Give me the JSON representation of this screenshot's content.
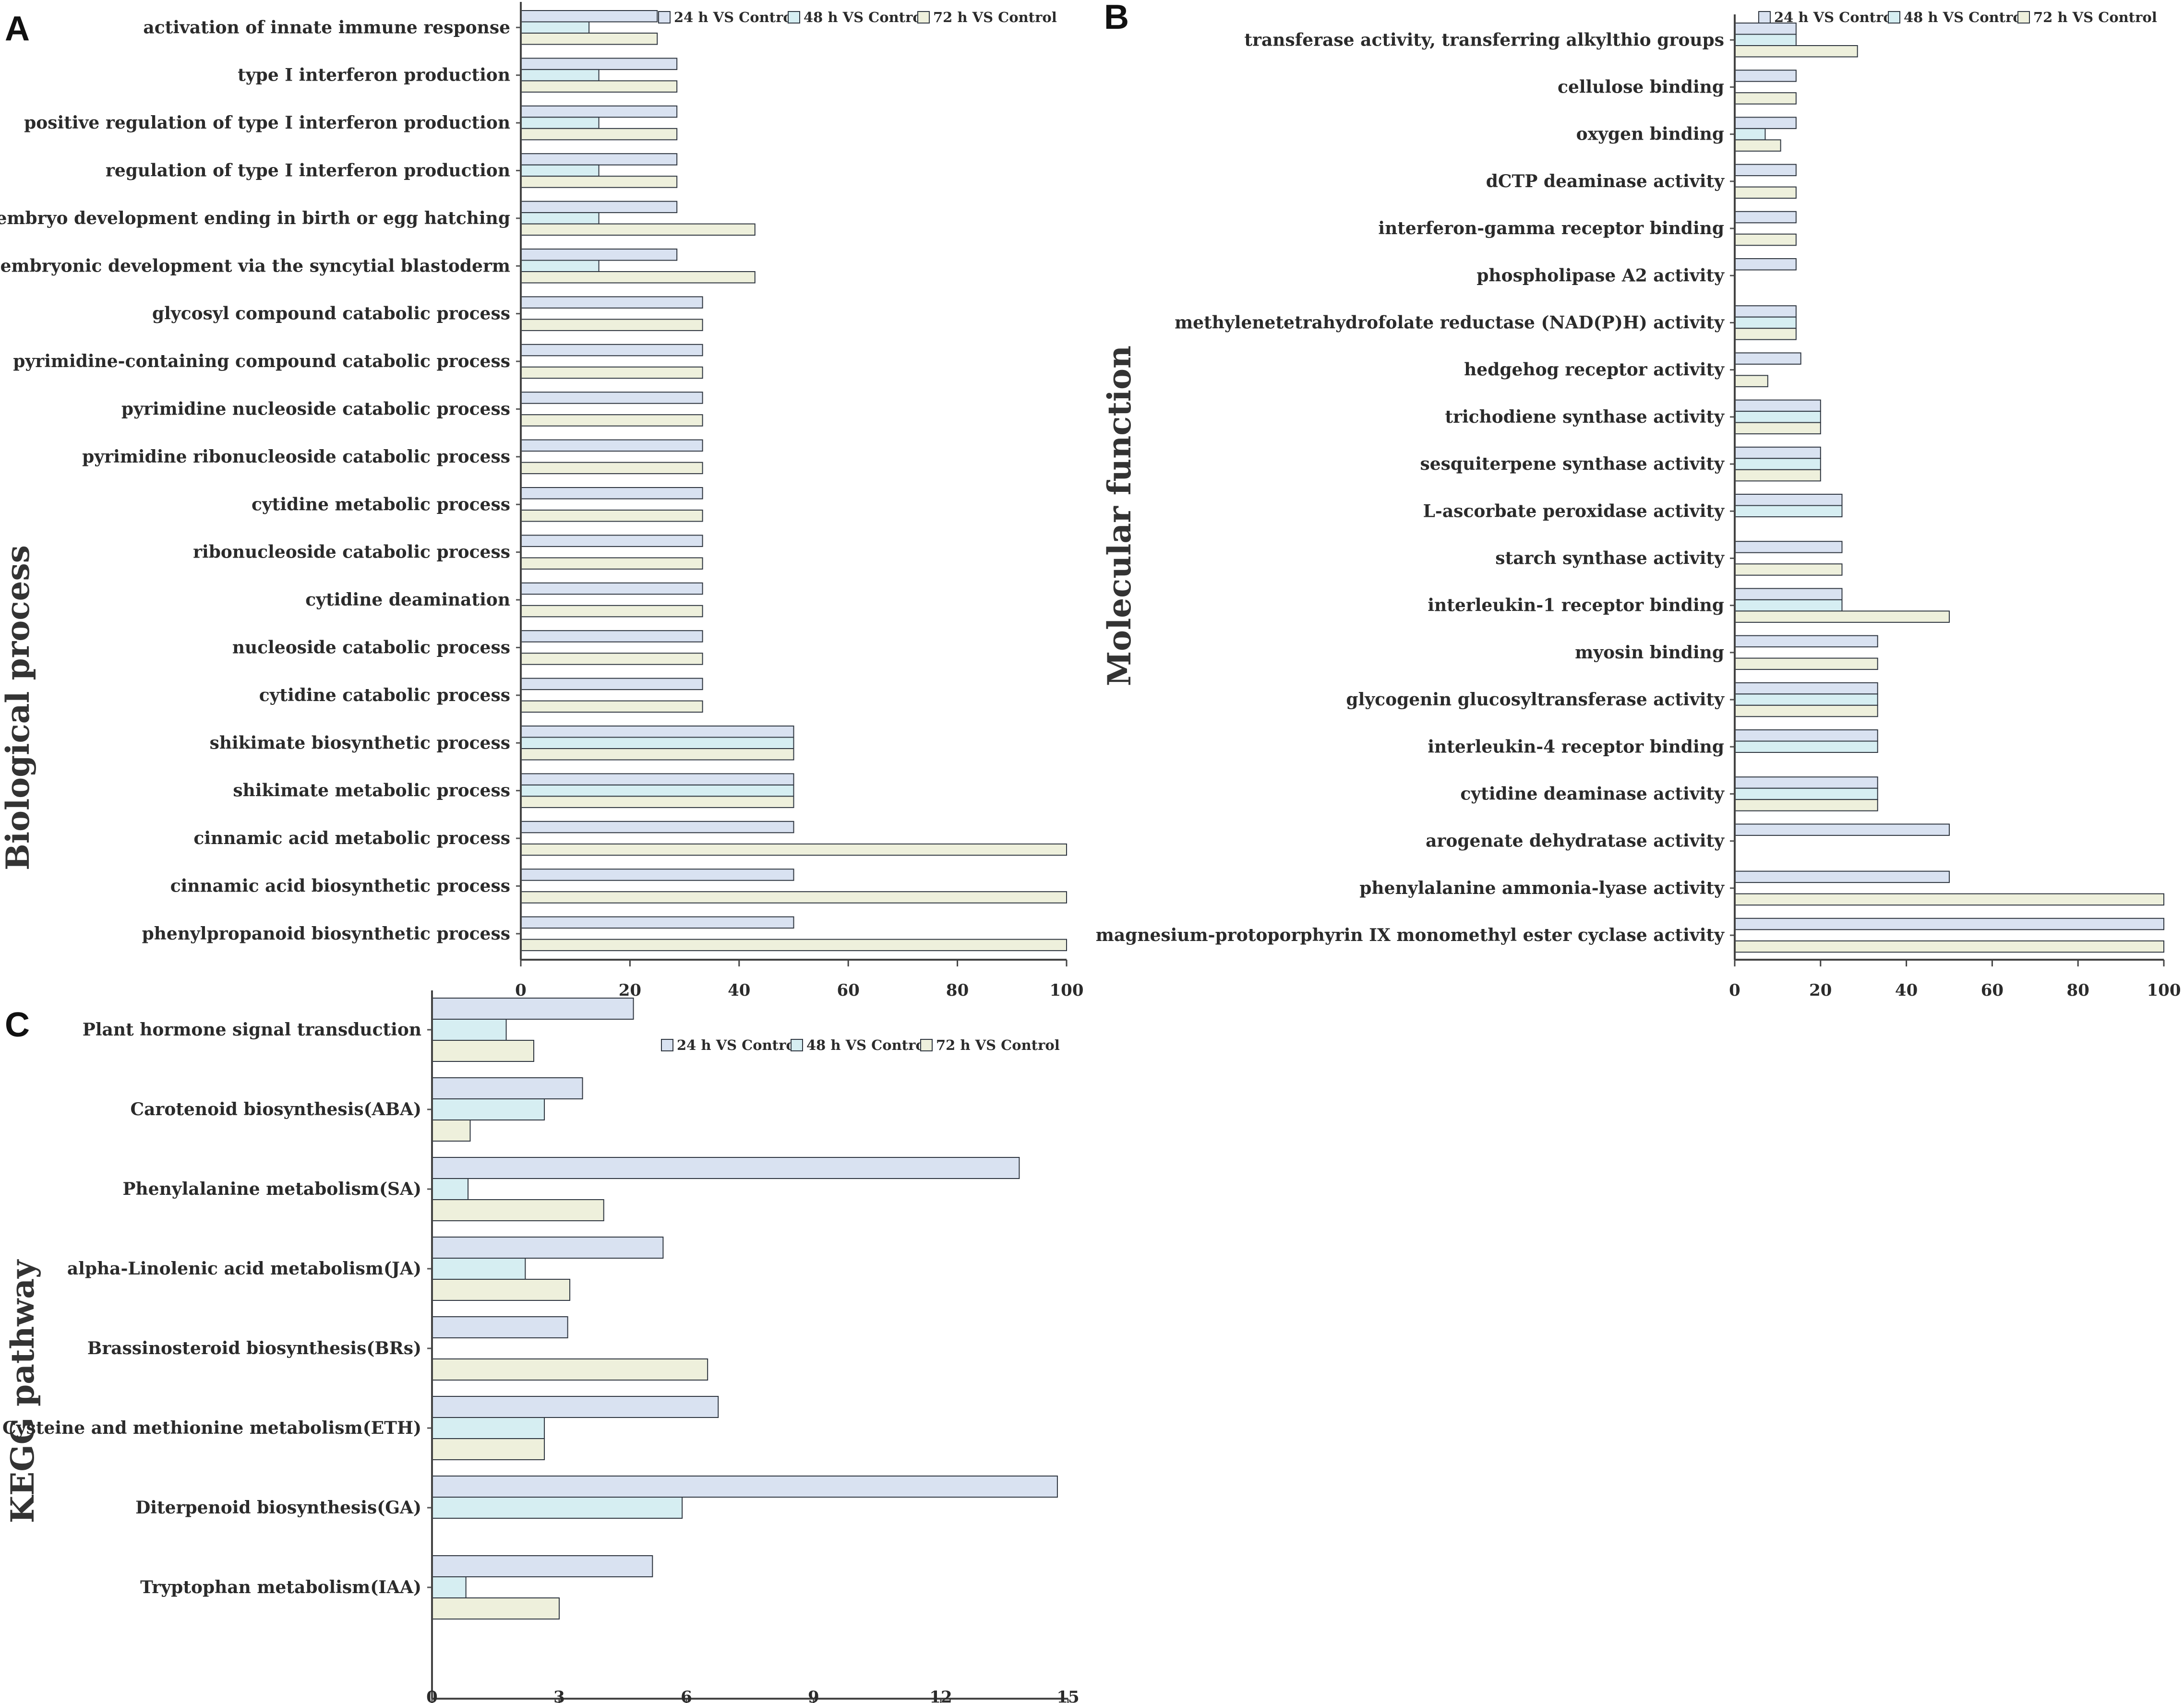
{
  "series_colors": [
    "#d9e2f1",
    "#d6eef2",
    "#eef0dc"
  ],
  "bar_stroke": "#2f3640",
  "chart_data": [
    {
      "panel": "A",
      "type": "bar",
      "orientation": "horizontal",
      "ylabel": "Biological process",
      "legend": [
        "24 h VS Control",
        "48 h VS Control",
        "72 h VS Control"
      ],
      "xlim": [
        0,
        100
      ],
      "xticks": [
        0,
        20,
        40,
        60,
        80,
        100
      ],
      "categories": [
        "activation of innate immune response",
        "type I interferon production",
        "positive regulation of type I interferon production",
        "regulation of type I interferon production",
        "embryo development ending in birth or egg hatching",
        "embryonic development via the syncytial blastoderm",
        "glycosyl compound catabolic process",
        "pyrimidine-containing compound catabolic process",
        "pyrimidine nucleoside catabolic process",
        "pyrimidine ribonucleoside catabolic process",
        "cytidine metabolic process",
        "ribonucleoside catabolic process",
        "cytidine deamination",
        "nucleoside catabolic process",
        "cytidine catabolic process",
        "shikimate biosynthetic process",
        "shikimate metabolic process",
        "cinnamic acid metabolic process",
        "cinnamic acid biosynthetic process",
        "phenylpropanoid biosynthetic process"
      ],
      "series": [
        {
          "name": "24 h VS Control",
          "values": [
            25,
            28.6,
            28.6,
            28.6,
            28.6,
            28.6,
            33.3,
            33.3,
            33.3,
            33.3,
            33.3,
            33.3,
            33.3,
            33.3,
            33.3,
            50,
            50,
            50,
            50,
            50
          ]
        },
        {
          "name": "48 h VS Control",
          "values": [
            12.5,
            14.3,
            14.3,
            14.3,
            14.3,
            14.3,
            0,
            0,
            0,
            0,
            0,
            0,
            0,
            0,
            0,
            50,
            50,
            0,
            0,
            0
          ]
        },
        {
          "name": "72 h VS Control",
          "values": [
            25,
            28.6,
            28.6,
            28.6,
            42.9,
            42.9,
            33.3,
            33.3,
            33.3,
            33.3,
            33.3,
            33.3,
            33.3,
            33.3,
            33.3,
            50,
            50,
            100,
            100,
            100
          ]
        }
      ]
    },
    {
      "panel": "B",
      "type": "bar",
      "orientation": "horizontal",
      "ylabel": "Molecular function",
      "legend": [
        "24 h VS Control",
        "48 h VS Control",
        "72 h VS Control"
      ],
      "xlim": [
        0,
        100
      ],
      "xticks": [
        0,
        20,
        40,
        60,
        80,
        100
      ],
      "categories": [
        "transferase activity, transferring alkylthio groups",
        "cellulose binding",
        "oxygen binding",
        "dCTP deaminase activity",
        "interferon-gamma receptor binding",
        "phospholipase A2 activity",
        "methylenetetrahydrofolate reductase (NAD(P)H) activity",
        "hedgehog receptor activity",
        "trichodiene synthase activity",
        "sesquiterpene synthase activity",
        "L-ascorbate peroxidase activity",
        "starch synthase activity",
        "interleukin-1 receptor binding",
        "myosin binding",
        "glycogenin glucosyltransferase activity",
        "interleukin-4 receptor binding",
        "cytidine deaminase activity",
        "arogenate dehydratase activity",
        "phenylalanine ammonia-lyase activity",
        "magnesium-protoporphyrin IX monomethyl ester cyclase activity"
      ],
      "series": [
        {
          "name": "24 h VS Control",
          "values": [
            14.3,
            14.3,
            14.3,
            14.3,
            14.3,
            14.3,
            14.3,
            15.4,
            20,
            20,
            25,
            25,
            25,
            33.3,
            33.3,
            33.3,
            33.3,
            50,
            50,
            100
          ]
        },
        {
          "name": "48 h VS Control",
          "values": [
            14.3,
            0,
            7.1,
            0,
            0,
            0,
            14.3,
            0,
            20,
            20,
            25,
            0,
            25,
            0,
            33.3,
            33.3,
            33.3,
            0,
            0,
            0
          ]
        },
        {
          "name": "72 h VS Control",
          "values": [
            28.6,
            14.3,
            10.7,
            14.3,
            14.3,
            0,
            14.3,
            7.7,
            20,
            20,
            0,
            25,
            50,
            33.3,
            33.3,
            0,
            33.3,
            0,
            100,
            100
          ]
        }
      ]
    },
    {
      "panel": "C",
      "type": "bar",
      "orientation": "horizontal",
      "ylabel": "KEGG pathway",
      "legend": [
        "24 h VS Control",
        "48 h VS Control",
        "72 h VS Control"
      ],
      "xlim": [
        0,
        15
      ],
      "xticks": [
        0,
        3,
        6,
        9,
        12,
        15
      ],
      "categories": [
        "Plant hormone signal transduction",
        "Carotenoid biosynthesis(ABA)",
        "Phenylalanine metabolism(SA)",
        "alpha-Linolenic acid metabolism(JA)",
        "Brassinosteroid biosynthesis(BRs)",
        "Cysteine and methionine metabolism(ETH)",
        "Diterpenoid biosynthesis(GA)",
        "Tryptophan metabolism(IAA)"
      ],
      "series": [
        {
          "name": "24 h VS Control",
          "values": [
            4.75,
            3.55,
            13.85,
            5.45,
            3.2,
            6.75,
            14.75,
            5.2
          ]
        },
        {
          "name": "48 h VS Control",
          "values": [
            1.75,
            2.65,
            0.85,
            2.2,
            0,
            2.65,
            5.9,
            0.8
          ]
        },
        {
          "name": "72 h VS Control",
          "values": [
            2.4,
            0.9,
            4.05,
            3.25,
            6.5,
            2.65,
            0,
            3.0
          ]
        }
      ]
    }
  ]
}
